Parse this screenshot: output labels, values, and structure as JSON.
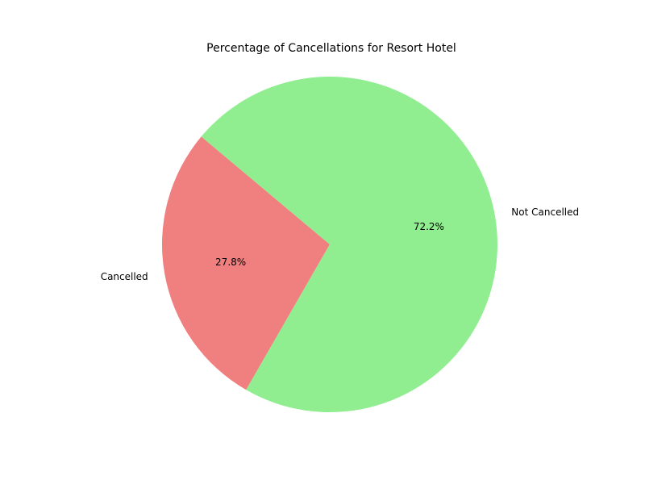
{
  "chart_data": {
    "type": "pie",
    "title": "Percentage of Cancellations for Resort Hotel",
    "slices": [
      {
        "label": "Cancelled",
        "value": 27.8,
        "value_label": "27.8%",
        "color": "#f08080"
      },
      {
        "label": "Not Cancelled",
        "value": 72.2,
        "value_label": "72.2%",
        "color": "#90ee90"
      }
    ],
    "start_angle_deg": 140,
    "direction": "counterclockwise",
    "legend": "none"
  }
}
